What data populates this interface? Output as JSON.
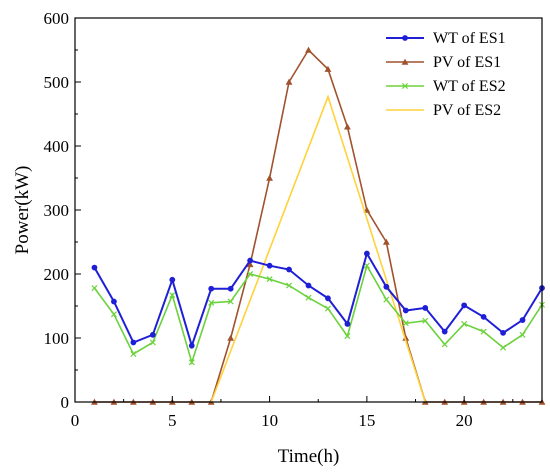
{
  "chart_data": {
    "type": "line",
    "xlabel": "Time(h)",
    "ylabel": "Power(kW)",
    "xlim": [
      0,
      24
    ],
    "ylim": [
      0,
      600
    ],
    "xticks": [
      0,
      5,
      10,
      15,
      20
    ],
    "yticks": [
      0,
      100,
      200,
      300,
      400,
      500,
      600
    ],
    "grid": false,
    "legend_position": "top-right",
    "series": [
      {
        "name": "WT of ES1",
        "color": "#1f1fd6",
        "marker": "circle",
        "x": [
          1,
          2,
          3,
          4,
          5,
          6,
          7,
          8,
          9,
          10,
          11,
          12,
          13,
          14,
          15,
          16,
          17,
          18,
          19,
          20,
          21,
          22,
          23,
          24
        ],
        "y": [
          210,
          157,
          93,
          105,
          191,
          88,
          177,
          177,
          221,
          213,
          207,
          182,
          162,
          122,
          232,
          180,
          143,
          147,
          110,
          151,
          133,
          108,
          128,
          178
        ]
      },
      {
        "name": "PV of ES1",
        "color": "#a0522d",
        "marker": "triangle",
        "x": [
          1,
          2,
          3,
          4,
          5,
          6,
          7,
          8,
          9,
          10,
          11,
          12,
          13,
          14,
          15,
          16,
          17,
          18,
          19,
          20,
          21,
          22,
          23,
          24
        ],
        "y": [
          0,
          0,
          0,
          0,
          0,
          0,
          0,
          100,
          215,
          350,
          500,
          550,
          520,
          430,
          300,
          250,
          100,
          0,
          0,
          0,
          0,
          0,
          0,
          0
        ]
      },
      {
        "name": "WT of ES2",
        "color": "#6bd23c",
        "marker": "x",
        "x": [
          1,
          2,
          3,
          4,
          5,
          6,
          7,
          8,
          9,
          10,
          11,
          12,
          13,
          14,
          15,
          16,
          17,
          18,
          19,
          20,
          21,
          22,
          23,
          24
        ],
        "y": [
          178,
          137,
          75,
          93,
          167,
          62,
          155,
          157,
          200,
          192,
          182,
          163,
          146,
          103,
          213,
          160,
          123,
          127,
          90,
          122,
          110,
          85,
          105,
          152
        ]
      },
      {
        "name": "PV of ES2",
        "color": "#ffd23c",
        "marker": "none",
        "x": [
          7,
          13,
          18
        ],
        "y": [
          0,
          477,
          0
        ]
      }
    ]
  }
}
